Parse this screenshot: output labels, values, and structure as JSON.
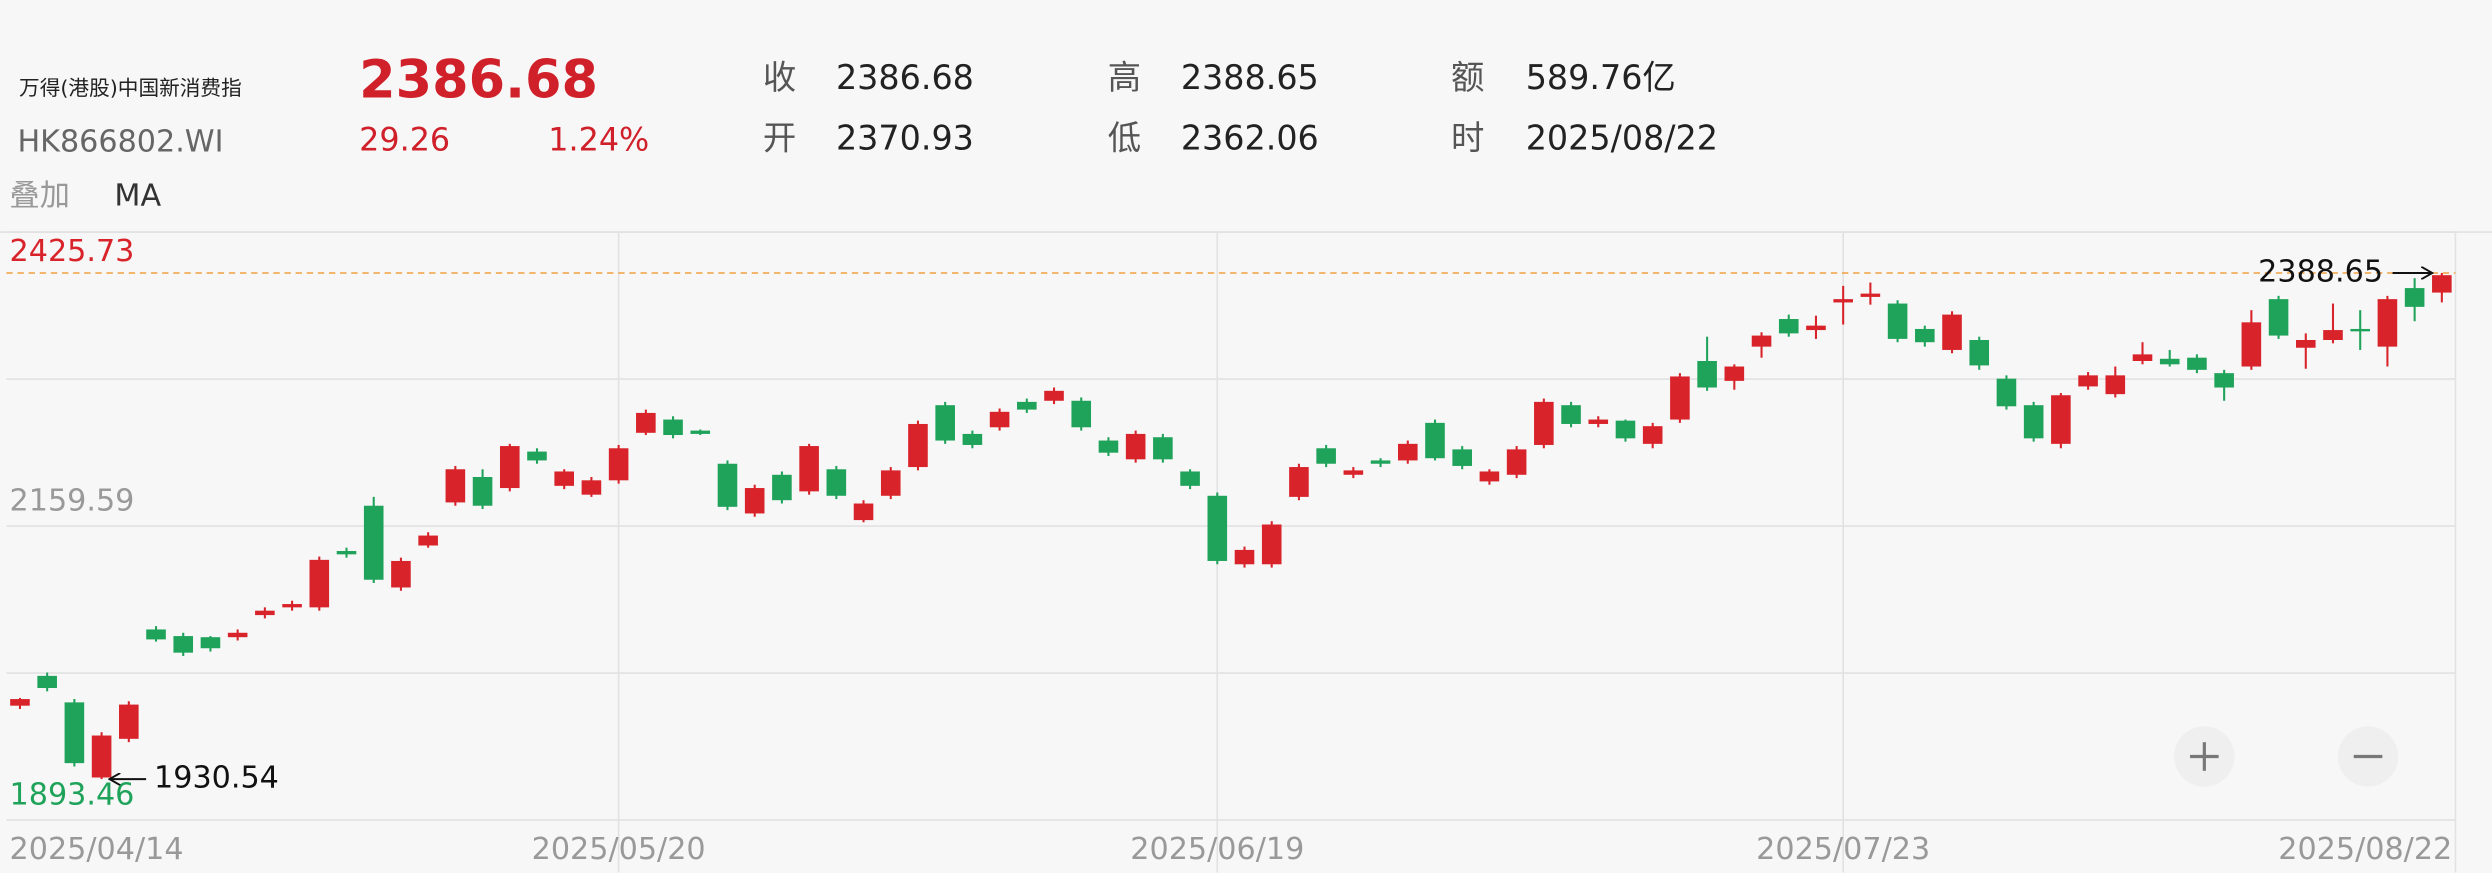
{
  "header": {
    "name": "万得(港股)中国新消费指",
    "code": "HK866802.WI",
    "price": "2386.68",
    "change": "29.26",
    "change_pct": "1.24%"
  },
  "quote": [
    {
      "label": "收",
      "value": "2386.68"
    },
    {
      "label": "开",
      "value": "2370.93"
    },
    {
      "label": "高",
      "value": "2388.65"
    },
    {
      "label": "低",
      "value": "2362.06"
    },
    {
      "label": "额",
      "value": "589.76亿"
    },
    {
      "label": "时",
      "value": "2025/08/22"
    }
  ],
  "overlay": [
    "叠加",
    "MA"
  ],
  "chart_data": {
    "type": "candlestick",
    "up_color": "#d8232a",
    "down_color": "#1fa35a",
    "categories": [
      "2025/04/14",
      null,
      null,
      null,
      null,
      null,
      null,
      null,
      null,
      null,
      null,
      null,
      null,
      null,
      null,
      null,
      null,
      null,
      null,
      null,
      null,
      null,
      "2025/05/20",
      null,
      null,
      null,
      null,
      null,
      null,
      null,
      null,
      null,
      null,
      null,
      null,
      null,
      null,
      null,
      null,
      null,
      null,
      null,
      null,
      null,
      "2025/06/19",
      null,
      null,
      null,
      null,
      null,
      null,
      null,
      null,
      null,
      null,
      null,
      null,
      null,
      null,
      null,
      null,
      null,
      null,
      null,
      null,
      null,
      null,
      "2025/07/23",
      null,
      null,
      null,
      null,
      null,
      null,
      null,
      null,
      null,
      null,
      null,
      null,
      null,
      null,
      null,
      null,
      null,
      null,
      null,
      null,
      null,
      "2025/08/22"
    ],
    "open": [
      1997,
      2024,
      2000,
      1932,
      1967,
      2066,
      2060,
      2059,
      2059,
      2079,
      2086,
      2086,
      2137,
      2178,
      2104,
      2142,
      2181,
      2204,
      2194,
      2227,
      2196,
      2188,
      2201,
      2244,
      2256,
      2246,
      2216,
      2171,
      2206,
      2191,
      2211,
      2165,
      2187,
      2213,
      2269,
      2243,
      2249,
      2272,
      2273,
      2273,
      2237,
      2220,
      2240,
      2209,
      2187,
      2125,
      2125,
      2186,
      2230,
      2206,
      2219,
      2219,
      2253,
      2229,
      2200,
      2206,
      2233,
      2269,
      2252,
      2255,
      2234,
      2256,
      2309,
      2291,
      2322,
      2347,
      2337,
      2362,
      2367,
      2361,
      2338,
      2319,
      2328,
      2293,
      2269,
      2234,
      2286,
      2279,
      2309,
      2311,
      2312,
      2298,
      2304,
      2365,
      2321,
      2328,
      2338,
      2322,
      2375,
      2370.93
    ],
    "high": [
      2004,
      2027,
      2003,
      1973,
      2001,
      2069,
      2063,
      2060,
      2066,
      2086,
      2092,
      2132,
      2140,
      2186,
      2131,
      2154,
      2214,
      2211,
      2234,
      2230,
      2211,
      2204,
      2233,
      2265,
      2259,
      2247,
      2219,
      2197,
      2209,
      2234,
      2214,
      2183,
      2213,
      2255,
      2272,
      2246,
      2266,
      2275,
      2285,
      2276,
      2240,
      2246,
      2243,
      2211,
      2190,
      2141,
      2164,
      2216,
      2233,
      2213,
      2221,
      2237,
      2256,
      2232,
      2211,
      2232,
      2275,
      2272,
      2259,
      2256,
      2253,
      2298,
      2331,
      2306,
      2335,
      2351,
      2350,
      2377,
      2380,
      2364,
      2341,
      2354,
      2331,
      2296,
      2272,
      2280,
      2299,
      2304,
      2326,
      2319,
      2315,
      2301,
      2355,
      2368,
      2334,
      2361,
      2355,
      2368,
      2384,
      2388.65
    ],
    "low": [
      1994,
      2010,
      1942,
      1930.54,
      1964,
      2055,
      2042,
      2046,
      2056,
      2076,
      2083,
      2083,
      2131,
      2108,
      2101,
      2140,
      2178,
      2175,
      2191,
      2216,
      2193,
      2186,
      2198,
      2242,
      2239,
      2242,
      2174,
      2168,
      2180,
      2188,
      2184,
      2163,
      2184,
      2210,
      2234,
      2230,
      2246,
      2262,
      2270,
      2246,
      2223,
      2217,
      2217,
      2193,
      2125,
      2122,
      2122,
      2183,
      2213,
      2203,
      2213,
      2216,
      2219,
      2211,
      2197,
      2203,
      2230,
      2249,
      2249,
      2236,
      2230,
      2253,
      2282,
      2283,
      2312,
      2331,
      2329,
      2342,
      2360,
      2326,
      2322,
      2316,
      2301,
      2265,
      2236,
      2230,
      2283,
      2276,
      2306,
      2304,
      2298,
      2273,
      2301,
      2329,
      2302,
      2325,
      2319,
      2304,
      2345,
      2362.06
    ],
    "close": [
      2003,
      2013,
      1945,
      1970,
      1998,
      2057,
      2045,
      2049,
      2063,
      2083,
      2089,
      2129,
      2134,
      2111,
      2128,
      2151,
      2211,
      2178,
      2232,
      2219,
      2209,
      2201,
      2230,
      2262,
      2242,
      2243,
      2177,
      2194,
      2183,
      2232,
      2187,
      2180,
      2210,
      2252,
      2237,
      2233,
      2263,
      2265,
      2282,
      2249,
      2226,
      2243,
      2220,
      2196,
      2128,
      2138,
      2161,
      2213,
      2216,
      2210,
      2216,
      2234,
      2221,
      2214,
      2209,
      2229,
      2272,
      2252,
      2256,
      2239,
      2250,
      2295,
      2285,
      2304,
      2332,
      2334,
      2341,
      2365,
      2370,
      2329,
      2326,
      2351,
      2305,
      2268,
      2239,
      2278,
      2296,
      2296,
      2315,
      2306,
      2301,
      2285,
      2344,
      2332,
      2328,
      2337,
      2337,
      2365,
      2358,
      2386.68
    ],
    "ylim": [
      1893.46,
      2425.73
    ],
    "yticks": [
      1893.46,
      2159.59,
      2425.73
    ],
    "grid": true,
    "annotations": {
      "max": 2388.65,
      "min": 1930.54
    }
  }
}
